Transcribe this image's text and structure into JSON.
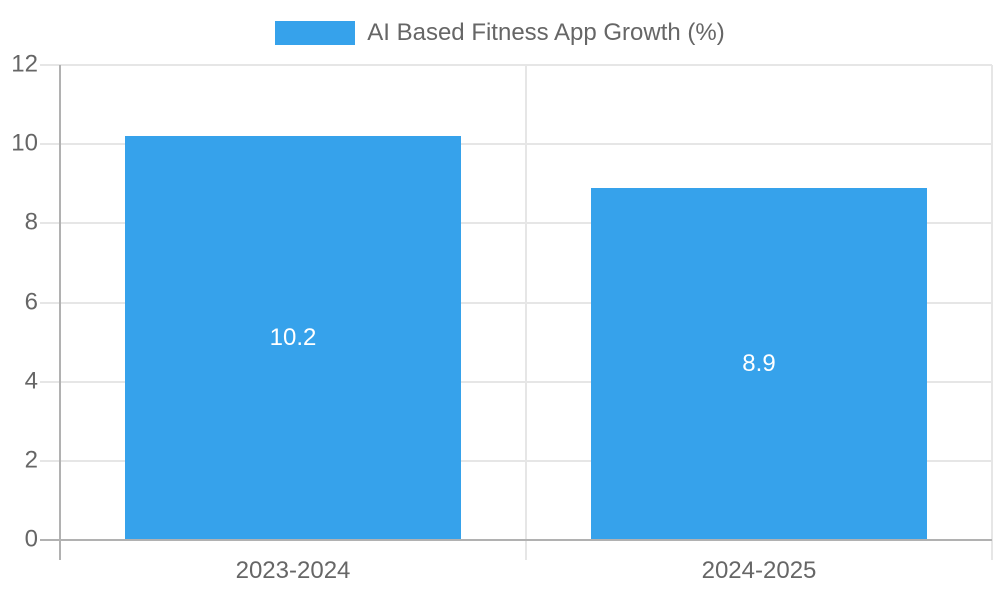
{
  "chart_data": {
    "type": "bar",
    "title": "",
    "categories": [
      "2023-2024",
      "2024-2025"
    ],
    "series": [
      {
        "name": "AI Based Fitness App Growth (%)",
        "values": [
          10.2,
          8.9
        ],
        "value_labels": [
          "10.2",
          "8.9"
        ]
      }
    ],
    "xlabel": "",
    "ylabel": "",
    "ylim": [
      0,
      12
    ],
    "yticks": [
      0,
      2,
      4,
      6,
      8,
      10,
      12
    ],
    "grid": true,
    "legend_position": "top-center",
    "colors": {
      "bar": "#36a2eb",
      "grid_light": "#e6e6e6",
      "grid_dark": "#b1b1b1",
      "text": "#666666",
      "value_label": "#ffffff",
      "background": "#ffffff"
    }
  }
}
